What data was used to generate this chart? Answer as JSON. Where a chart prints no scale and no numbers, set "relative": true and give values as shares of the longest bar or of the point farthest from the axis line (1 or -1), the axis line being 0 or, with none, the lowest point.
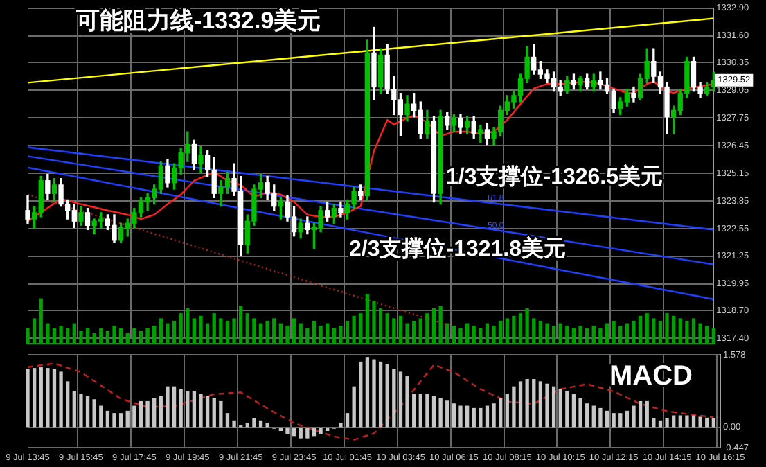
{
  "chart_data": [
    {
      "type": "candlestick",
      "grid": true,
      "colors": [
        "#ffffff",
        "#00c000",
        "#00c000",
        "#ffffff",
        "#00c000",
        "#ffffff",
        "#ffffff",
        "#ffffff",
        "#00c000",
        "#ffffff",
        "#00c000",
        "#00c000",
        "#ffffff",
        "#ffffff",
        "#00c000",
        "#00c000",
        "#00c000",
        "#00c000",
        "#00c000",
        "#00c000",
        "#00c000",
        "#ffffff",
        "#00c000",
        "#00c000",
        "#00c000",
        "#ffffff",
        "#00c000",
        "#ffffff",
        "#ffffff",
        "#00c000",
        "#00c000",
        "#ffffff",
        "#ffffff",
        "#00c000",
        "#00c000",
        "#00c000",
        "#ffffff",
        "#ffffff",
        "#00c000",
        "#ffffff",
        "#ffffff",
        "#00c000",
        "#ffffff",
        "#00c000",
        "#00c000",
        "#ffffff",
        "#00c000",
        "#ffffff",
        "#00c000",
        "#00c000",
        "#ffffff",
        "#00c000",
        "#ffffff",
        "#00c000",
        "#ffffff",
        "#ffffff",
        "#ffffff",
        "#00c000",
        "#ffffff",
        "#ffffff",
        "#00c000",
        "#ffffff",
        "#00c000",
        "#ffffff",
        "#00c000",
        "#ffffff",
        "#00c000",
        "#ffffff",
        "#00c000",
        "#ffffff",
        "#00c000",
        "#00c000",
        "#00c000",
        "#00c000",
        "#00c000",
        "#00c000",
        "#ffffff",
        "#ffffff",
        "#ffffff",
        "#ffffff",
        "#ffffff",
        "#00c000",
        "#ffffff",
        "#00c000",
        "#ffffff",
        "#00c000",
        "#ffffff",
        "#ffffff",
        "#ffffff",
        "#00c000",
        "#00c000",
        "#ffffff",
        "#00c000",
        "#00c000",
        "#ffffff",
        "#ffffff",
        "#ffffff",
        "#00c000",
        "#00c000",
        "#00c000",
        "#ffffff",
        "#ffffff",
        "#00c000",
        "#00c000"
      ],
      "tick_labels": "y",
      "legend": false,
      "categories": [
        null,
        null,
        null,
        null,
        null,
        null,
        null,
        null,
        null,
        null,
        null,
        null,
        null,
        null,
        null,
        null,
        null,
        null,
        null,
        null,
        null,
        null,
        null,
        null,
        null,
        null,
        null,
        null,
        null,
        null,
        null,
        null,
        null,
        null,
        null,
        null,
        null,
        null,
        null,
        null,
        null,
        null,
        null,
        null,
        null,
        null,
        null,
        null,
        null,
        null,
        null,
        null,
        null,
        null,
        null,
        null,
        null,
        null,
        null,
        null,
        null,
        null,
        null,
        null,
        null,
        null,
        null,
        null,
        null,
        null,
        null,
        null,
        null,
        null,
        null,
        null,
        null,
        null,
        null,
        null,
        null,
        null,
        null,
        null,
        null,
        null,
        null,
        null,
        null,
        null,
        null,
        null,
        null,
        null,
        null,
        null,
        null,
        null,
        null,
        null,
        null,
        null,
        null,
        null
      ],
      "ylim": [
        1317.4,
        1332.9
      ],
      "yticks": [
        {
          "value": 1332.9,
          "label": "1332.90"
        },
        {
          "value": 1331.6,
          "label": "1331.60"
        },
        {
          "value": 1330.35,
          "label": "1330.35"
        },
        {
          "value": 1329.05,
          "label": "1329.05"
        },
        {
          "value": 1327.75,
          "label": "1327.75"
        },
        {
          "value": 1326.45,
          "label": "1326.45"
        },
        {
          "value": 1325.15,
          "label": "1325.15"
        },
        {
          "value": 1323.85,
          "label": "1323.85"
        },
        {
          "value": 1322.55,
          "label": "1322.55"
        },
        {
          "value": 1321.25,
          "label": "1321.25"
        },
        {
          "value": 1319.95,
          "label": "1319.95"
        },
        {
          "value": 1318.7,
          "label": "1318.70"
        },
        {
          "value": 1317.4,
          "label": "1317.40"
        }
      ],
      "ohlc": [
        [
          1323.4,
          1324.1,
          1322.8,
          1323.0
        ],
        [
          1323.0,
          1323.6,
          1322.6,
          1323.3
        ],
        [
          1323.3,
          1325.0,
          1323.1,
          1324.8
        ],
        [
          1324.8,
          1325.1,
          1323.9,
          1324.2
        ],
        [
          1324.2,
          1324.9,
          1323.8,
          1324.6
        ],
        [
          1324.6,
          1324.9,
          1323.6,
          1323.7
        ],
        [
          1323.7,
          1323.9,
          1323.0,
          1323.4
        ],
        [
          1323.4,
          1323.7,
          1322.6,
          1322.9
        ],
        [
          1322.9,
          1323.6,
          1322.7,
          1323.3
        ],
        [
          1323.3,
          1323.5,
          1322.5,
          1322.7
        ],
        [
          1322.7,
          1323.0,
          1322.3,
          1322.9
        ],
        [
          1322.9,
          1323.3,
          1322.6,
          1323.0
        ],
        [
          1323.0,
          1323.2,
          1322.5,
          1322.7
        ],
        [
          1322.7,
          1323.2,
          1321.9,
          1322.0
        ],
        [
          1322.0,
          1322.8,
          1321.9,
          1322.6
        ],
        [
          1322.6,
          1323.0,
          1322.2,
          1322.8
        ],
        [
          1322.8,
          1323.5,
          1322.6,
          1323.3
        ],
        [
          1323.3,
          1324.0,
          1323.1,
          1323.8
        ],
        [
          1323.8,
          1324.2,
          1323.4,
          1324.0
        ],
        [
          1324.0,
          1324.6,
          1323.7,
          1324.4
        ],
        [
          1324.4,
          1325.7,
          1324.2,
          1325.5
        ],
        [
          1325.5,
          1325.8,
          1324.5,
          1324.7
        ],
        [
          1324.7,
          1325.6,
          1324.4,
          1325.4
        ],
        [
          1325.4,
          1326.3,
          1325.1,
          1326.1
        ],
        [
          1326.1,
          1327.1,
          1325.7,
          1326.5
        ],
        [
          1326.5,
          1326.7,
          1325.3,
          1325.6
        ],
        [
          1325.6,
          1326.4,
          1325.2,
          1326.0
        ],
        [
          1326.0,
          1326.2,
          1325.0,
          1325.3
        ],
        [
          1325.3,
          1325.9,
          1324.0,
          1324.2
        ],
        [
          1324.2,
          1324.8,
          1323.6,
          1324.5
        ],
        [
          1324.5,
          1325.2,
          1324.2,
          1324.9
        ],
        [
          1324.9,
          1325.6,
          1324.1,
          1324.3
        ],
        [
          1324.3,
          1325.0,
          1321.3,
          1321.8
        ],
        [
          1321.8,
          1323.2,
          1321.4,
          1322.9
        ],
        [
          1322.9,
          1324.6,
          1322.7,
          1324.4
        ],
        [
          1324.4,
          1325.1,
          1324.0,
          1324.7
        ],
        [
          1324.7,
          1325.0,
          1323.9,
          1324.2
        ],
        [
          1324.2,
          1324.6,
          1323.4,
          1323.6
        ],
        [
          1323.6,
          1324.0,
          1323.0,
          1323.8
        ],
        [
          1323.8,
          1324.1,
          1322.9,
          1323.1
        ],
        [
          1323.1,
          1323.6,
          1322.2,
          1322.4
        ],
        [
          1322.4,
          1323.0,
          1322.1,
          1322.8
        ],
        [
          1322.8,
          1323.1,
          1322.3,
          1322.5
        ],
        [
          1322.5,
          1322.8,
          1321.6,
          1322.6
        ],
        [
          1322.6,
          1323.6,
          1322.4,
          1323.4
        ],
        [
          1323.4,
          1323.8,
          1322.9,
          1323.1
        ],
        [
          1323.1,
          1323.7,
          1322.8,
          1323.5
        ],
        [
          1323.5,
          1323.8,
          1323.1,
          1323.3
        ],
        [
          1323.3,
          1323.9,
          1323.0,
          1323.7
        ],
        [
          1323.7,
          1324.5,
          1323.5,
          1324.3
        ],
        [
          1324.3,
          1324.6,
          1323.9,
          1324.1
        ],
        [
          1324.1,
          1331.4,
          1323.9,
          1330.8
        ],
        [
          1330.8,
          1332.0,
          1328.6,
          1329.2
        ],
        [
          1329.2,
          1331.0,
          1328.9,
          1330.7
        ],
        [
          1330.7,
          1331.2,
          1328.9,
          1329.1
        ],
        [
          1329.1,
          1329.7,
          1327.9,
          1328.6
        ],
        [
          1328.6,
          1328.9,
          1326.9,
          1327.9
        ],
        [
          1327.9,
          1328.8,
          1327.6,
          1328.4
        ],
        [
          1328.4,
          1328.9,
          1327.8,
          1328.1
        ],
        [
          1328.1,
          1328.5,
          1326.8,
          1327.0
        ],
        [
          1327.0,
          1328.1,
          1326.8,
          1327.6
        ],
        [
          1327.6,
          1327.8,
          1323.8,
          1324.2
        ],
        [
          1324.2,
          1328.1,
          1323.7,
          1327.8
        ],
        [
          1327.8,
          1328.0,
          1327.2,
          1327.4
        ],
        [
          1327.4,
          1327.9,
          1327.1,
          1327.7
        ],
        [
          1327.7,
          1327.9,
          1327.0,
          1327.3
        ],
        [
          1327.3,
          1327.8,
          1327.0,
          1327.6
        ],
        [
          1327.6,
          1327.8,
          1326.8,
          1327.0
        ],
        [
          1327.0,
          1327.4,
          1326.6,
          1327.2
        ],
        [
          1327.2,
          1327.5,
          1326.5,
          1326.8
        ],
        [
          1326.8,
          1327.3,
          1326.5,
          1327.1
        ],
        [
          1327.1,
          1328.3,
          1326.9,
          1328.1
        ],
        [
          1328.1,
          1328.8,
          1327.9,
          1328.5
        ],
        [
          1328.5,
          1329.0,
          1328.2,
          1328.8
        ],
        [
          1328.8,
          1329.8,
          1328.5,
          1329.6
        ],
        [
          1329.6,
          1331.1,
          1329.4,
          1330.6
        ],
        [
          1330.6,
          1331.2,
          1329.8,
          1330.0
        ],
        [
          1330.0,
          1330.4,
          1329.6,
          1329.8
        ],
        [
          1329.8,
          1330.0,
          1329.4,
          1329.6
        ],
        [
          1329.6,
          1329.9,
          1329.0,
          1329.2
        ],
        [
          1329.2,
          1329.5,
          1328.8,
          1329.0
        ],
        [
          1329.0,
          1329.7,
          1328.9,
          1329.5
        ],
        [
          1329.5,
          1329.8,
          1329.1,
          1329.3
        ],
        [
          1329.3,
          1329.7,
          1329.0,
          1329.6
        ],
        [
          1329.6,
          1329.8,
          1329.1,
          1329.2
        ],
        [
          1329.2,
          1329.8,
          1329.0,
          1329.5
        ],
        [
          1329.5,
          1329.9,
          1329.1,
          1329.3
        ],
        [
          1329.3,
          1329.6,
          1328.9,
          1329.0
        ],
        [
          1329.0,
          1329.1,
          1328.0,
          1328.2
        ],
        [
          1328.2,
          1328.7,
          1327.9,
          1328.5
        ],
        [
          1328.5,
          1329.1,
          1328.3,
          1328.9
        ],
        [
          1328.9,
          1329.2,
          1328.5,
          1328.7
        ],
        [
          1328.7,
          1329.8,
          1328.6,
          1329.6
        ],
        [
          1329.6,
          1331.0,
          1329.4,
          1330.4
        ],
        [
          1330.4,
          1331.0,
          1329.4,
          1329.7
        ],
        [
          1329.7,
          1329.9,
          1328.9,
          1329.2
        ],
        [
          1329.2,
          1329.4,
          1327.0,
          1327.8
        ],
        [
          1327.8,
          1328.3,
          1327.0,
          1328.1
        ],
        [
          1328.1,
          1329.1,
          1327.9,
          1328.9
        ],
        [
          1328.9,
          1330.6,
          1328.7,
          1330.4
        ],
        [
          1330.4,
          1330.6,
          1329.0,
          1329.2
        ],
        [
          1329.2,
          1329.4,
          1328.7,
          1328.9
        ],
        [
          1328.9,
          1329.4,
          1328.8,
          1329.2
        ],
        [
          1329.2,
          1329.9,
          1329.0,
          1329.52
        ]
      ],
      "series": [
        {
          "type": "line",
          "color": "#ff2020",
          "values": [
            1322.9,
            null,
            null,
            null,
            null,
            1323.94,
            null,
            null,
            1323.7,
            null,
            null,
            null,
            1323.4,
            null,
            null,
            1323.2,
            null,
            1323.0,
            null,
            1323.2,
            null,
            1323.7,
            null,
            1324.15,
            null,
            1324.8,
            null,
            null,
            1325.2,
            null,
            1324.8,
            null,
            1324.6,
            null,
            1324.04,
            null,
            1324.26,
            null,
            1324.15,
            null,
            1323.8,
            null,
            1323.2,
            null,
            1323.1,
            null,
            1323.1,
            null,
            1323.3,
            null,
            1323.6,
            null,
            1326.2,
            null,
            1327.65,
            1327.44,
            null,
            1327.75,
            1327.86,
            null,
            1327.54,
            null,
            1326.9,
            null,
            1327.1,
            null,
            1327.1,
            null,
            1327.0,
            null,
            1327.1,
            null,
            1327.65,
            null,
            1328.4,
            null,
            1329.13,
            null,
            1329.34,
            null,
            1329.34,
            null,
            null,
            null,
            1329.45,
            null,
            1329.34,
            null,
            1329.13,
            null,
            1328.92,
            1328.92,
            null,
            1329.34,
            1329.45,
            null,
            1329.0,
            1328.92,
            null,
            1329.13,
            null,
            1329.23,
            null,
            1329.34
          ]
        },
        {
          "type": "line",
          "color": "#ffff00",
          "values": [
            1329.4,
            null,
            null,
            null,
            null,
            null,
            null,
            null,
            null,
            null,
            null,
            null,
            null,
            null,
            null,
            null,
            null,
            null,
            null,
            null,
            null,
            null,
            null,
            null,
            null,
            null,
            null,
            null,
            null,
            null,
            null,
            null,
            null,
            null,
            null,
            null,
            null,
            null,
            null,
            null,
            null,
            null,
            null,
            null,
            null,
            null,
            null,
            null,
            null,
            null,
            null,
            null,
            null,
            null,
            null,
            null,
            null,
            null,
            null,
            null,
            null,
            null,
            null,
            null,
            null,
            null,
            null,
            null,
            null,
            null,
            null,
            null,
            null,
            null,
            null,
            null,
            null,
            null,
            null,
            null,
            null,
            null,
            null,
            null,
            null,
            null,
            null,
            null,
            null,
            null,
            null,
            null,
            null,
            null,
            null,
            null,
            null,
            null,
            null,
            null,
            null,
            null,
            null,
            1332.42
          ]
        },
        {
          "type": "line",
          "color": "#2040ff",
          "values": [
            1326.37,
            null,
            null,
            null,
            null,
            null,
            null,
            null,
            null,
            null,
            null,
            null,
            null,
            null,
            null,
            null,
            null,
            null,
            null,
            null,
            null,
            null,
            null,
            null,
            null,
            null,
            null,
            null,
            null,
            null,
            null,
            null,
            null,
            null,
            null,
            null,
            null,
            null,
            null,
            null,
            null,
            null,
            null,
            null,
            null,
            null,
            null,
            null,
            null,
            null,
            null,
            null,
            null,
            null,
            null,
            null,
            null,
            null,
            null,
            null,
            null,
            null,
            null,
            null,
            null,
            null,
            null,
            null,
            null,
            null,
            null,
            null,
            null,
            null,
            null,
            null,
            null,
            null,
            null,
            null,
            null,
            null,
            null,
            null,
            null,
            null,
            null,
            null,
            null,
            null,
            null,
            null,
            null,
            null,
            null,
            null,
            null,
            null,
            null,
            null,
            null,
            null,
            null,
            1322.5
          ]
        },
        {
          "type": "line",
          "color": "#2040ff",
          "values": [
            1325.95,
            null,
            null,
            null,
            null,
            null,
            null,
            null,
            null,
            null,
            null,
            null,
            null,
            null,
            null,
            null,
            null,
            null,
            null,
            null,
            null,
            null,
            null,
            null,
            null,
            null,
            null,
            null,
            null,
            null,
            null,
            null,
            null,
            null,
            null,
            null,
            null,
            null,
            null,
            null,
            null,
            null,
            null,
            null,
            null,
            null,
            null,
            null,
            null,
            null,
            null,
            null,
            null,
            null,
            null,
            null,
            null,
            null,
            null,
            null,
            null,
            null,
            null,
            null,
            null,
            null,
            null,
            null,
            null,
            null,
            null,
            null,
            null,
            null,
            null,
            null,
            null,
            null,
            null,
            null,
            null,
            null,
            null,
            null,
            null,
            null,
            null,
            null,
            null,
            null,
            null,
            null,
            null,
            null,
            null,
            null,
            null,
            null,
            null,
            null,
            null,
            null,
            null,
            1320.87
          ]
        },
        {
          "type": "line",
          "color": "#2040ff",
          "values": [
            1325.42,
            null,
            null,
            null,
            null,
            null,
            null,
            null,
            null,
            null,
            null,
            null,
            null,
            null,
            null,
            null,
            null,
            null,
            null,
            null,
            null,
            null,
            null,
            null,
            null,
            null,
            null,
            null,
            null,
            null,
            null,
            null,
            null,
            null,
            null,
            null,
            null,
            null,
            null,
            null,
            null,
            null,
            null,
            null,
            null,
            null,
            null,
            null,
            null,
            null,
            null,
            null,
            null,
            null,
            null,
            null,
            null,
            null,
            null,
            null,
            null,
            null,
            null,
            null,
            null,
            null,
            null,
            null,
            null,
            null,
            null,
            null,
            null,
            null,
            null,
            null,
            null,
            null,
            null,
            null,
            null,
            null,
            null,
            null,
            null,
            null,
            null,
            null,
            null,
            null,
            null,
            null,
            null,
            null,
            null,
            null,
            null,
            null,
            null,
            null,
            null,
            null,
            null,
            1319.23
          ]
        },
        {
          "type": "line",
          "color": "#b02020",
          "line_style": "dotted",
          "values": [
            1324.15,
            null,
            null,
            null,
            null,
            null,
            null,
            null,
            null,
            null,
            null,
            null,
            null,
            null,
            null,
            null,
            null,
            null,
            null,
            null,
            null,
            null,
            null,
            null,
            null,
            null,
            null,
            null,
            null,
            null,
            null,
            null,
            null,
            null,
            null,
            null,
            null,
            null,
            null,
            null,
            null,
            null,
            null,
            null,
            null,
            null,
            null,
            null,
            null,
            null,
            null,
            null,
            null,
            null,
            null,
            null,
            null,
            null,
            null,
            null,
            null,
            null,
            null,
            null,
            1317.94,
            null,
            null,
            null,
            null,
            null,
            null,
            null,
            null,
            null,
            null,
            null,
            null,
            null,
            null,
            null,
            null,
            null,
            null,
            null,
            null,
            null,
            null,
            null,
            null,
            null,
            null,
            null,
            null,
            null,
            null,
            null,
            null,
            null,
            null,
            null,
            null,
            null,
            null,
            null
          ]
        }
      ],
      "annotations": [
        "可能阻力线-1332.9美元",
        "1/3支撑位-1326.5美元",
        "2/3支撑位-1321.8美元",
        "61.8",
        "50.0",
        "1329.52"
      ]
    },
    {
      "type": "bar",
      "relative": true,
      "tick_labels": false,
      "legend": false,
      "color": "#00a000",
      "categories": [
        null,
        null,
        null,
        null,
        null,
        null,
        null,
        null,
        null,
        null,
        null,
        null,
        null,
        null,
        null,
        null,
        null,
        null,
        null,
        null,
        null,
        null,
        null,
        null,
        null,
        null,
        null,
        null,
        null,
        null,
        null,
        null,
        null,
        null,
        null,
        null,
        null,
        null,
        null,
        null,
        null,
        null,
        null,
        null,
        null,
        null,
        null,
        null,
        null,
        null,
        null,
        null,
        null,
        null,
        null,
        null,
        null,
        null,
        null,
        null,
        null,
        null,
        null,
        null,
        null,
        null,
        null,
        null,
        null,
        null,
        null,
        null,
        null,
        null,
        null,
        null,
        null,
        null,
        null,
        null,
        null,
        null,
        null,
        null,
        null,
        null,
        null,
        null,
        null,
        null,
        null,
        null,
        null,
        null,
        null,
        null,
        null,
        null,
        null,
        null,
        null,
        null,
        null,
        null
      ],
      "values": [
        0.3,
        0.5,
        0.9,
        0.4,
        0.3,
        0.35,
        0.3,
        0.4,
        0.25,
        0.3,
        0.2,
        0.3,
        0.25,
        0.35,
        0.3,
        0.2,
        0.3,
        0.25,
        0.3,
        0.35,
        0.5,
        0.4,
        0.45,
        0.6,
        0.7,
        0.5,
        0.55,
        0.4,
        0.6,
        0.5,
        0.45,
        0.5,
        0.75,
        0.6,
        0.5,
        0.4,
        0.45,
        0.5,
        0.4,
        0.35,
        0.5,
        0.4,
        0.3,
        0.45,
        0.35,
        0.4,
        0.3,
        0.35,
        0.45,
        0.55,
        0.6,
        1,
        0.85,
        0.7,
        0.6,
        0.5,
        0.55,
        0.4,
        0.45,
        0.5,
        0.6,
        0.7,
        0.75,
        0.4,
        0.35,
        0.3,
        0.4,
        0.35,
        0.3,
        0.4,
        0.35,
        0.45,
        0.5,
        0.55,
        0.6,
        0.7,
        0.5,
        0.45,
        0.4,
        0.35,
        0.4,
        0.35,
        0.3,
        0.35,
        0.3,
        0.35,
        0.3,
        0.4,
        0.45,
        0.35,
        0.4,
        0.45,
        0.55,
        0.6,
        0.5,
        0.45,
        0.6,
        0.55,
        0.5,
        0.45,
        0.5,
        0.4,
        0.35,
        0.3
      ]
    },
    {
      "type": "bar",
      "grid": true,
      "legend": false,
      "categories": [
        "9 Jul 13:45",
        null,
        null,
        null,
        null,
        null,
        null,
        null,
        "9 Jul 15:45",
        null,
        null,
        null,
        null,
        null,
        null,
        null,
        "9 Jul 17:45",
        null,
        null,
        null,
        null,
        null,
        null,
        null,
        "9 Jul 19:45",
        null,
        null,
        null,
        null,
        null,
        null,
        null,
        "9 Jul 21:45",
        null,
        null,
        null,
        null,
        null,
        null,
        null,
        "9 Jul 23:45",
        null,
        null,
        null,
        null,
        null,
        null,
        null,
        "10 Jul 01:45",
        null,
        null,
        null,
        null,
        null,
        null,
        null,
        "10 Jul 03:45",
        null,
        null,
        null,
        null,
        null,
        null,
        null,
        "10 Jul 06:15",
        null,
        null,
        null,
        null,
        null,
        null,
        null,
        "10 Jul 08:15",
        null,
        null,
        null,
        null,
        null,
        null,
        null,
        "10 Jul 10:15",
        null,
        null,
        null,
        null,
        null,
        null,
        null,
        "10 Jul 12:15",
        null,
        null,
        null,
        null,
        null,
        null,
        null,
        "10 Jul 14:15",
        null,
        null,
        null,
        null,
        null,
        null,
        null,
        "10 Jul 16:15"
      ],
      "ylim": [
        -0.447,
        1.578
      ],
      "yticks": [
        {
          "value": 1.578,
          "label": "1.578"
        },
        {
          "value": 0,
          "label": "0.00"
        },
        {
          "value": -0.447,
          "label": "-0.447"
        }
      ],
      "series": [
        {
          "type": "bar",
          "color": "#c8c8c8",
          "values": [
            1.26,
            1.28,
            1.3,
            1.28,
            1.26,
            1.2,
            0.99,
            0.78,
            0.72,
            0.67,
            0.6,
            0.46,
            0.35,
            0.3,
            0.3,
            0.35,
            0.46,
            0.56,
            0.56,
            0.62,
            0.67,
            0.88,
            0.88,
            0.83,
            0.78,
            0.78,
            0.72,
            0.67,
            0.62,
            0.56,
            0.3,
            0.14,
            0.03,
            0.09,
            0.19,
            0.14,
            0.09,
            -0.02,
            -0.07,
            -0.13,
            -0.18,
            -0.23,
            -0.23,
            -0.18,
            -0.13,
            -0.07,
            -0.02,
            0.09,
            0.3,
            0.88,
            1.42,
            1.52,
            1.47,
            1.42,
            1.36,
            1.26,
            1.2,
            1.1,
            0.72,
            0.72,
            0.72,
            0.67,
            0.62,
            0.57,
            0.51,
            0.46,
            0.46,
            0.41,
            0.41,
            0.46,
            0.51,
            0.62,
            0.72,
            0.88,
            0.99,
            1.04,
            1.04,
            0.99,
            0.94,
            0.88,
            0.83,
            0.78,
            0.72,
            0.62,
            0.51,
            0.46,
            0.41,
            0.35,
            0.3,
            0.3,
            0.35,
            0.46,
            0.56,
            0.56,
            0.19,
            0.14,
            0.19,
            0.25,
            0.25,
            0.25,
            0.25,
            0.22,
            0.2,
            0.19,
            null
          ]
        },
        {
          "type": "line",
          "color": "#c02020",
          "line_style": "dashed",
          "values": [
            1.31,
            null,
            null,
            null,
            1.39,
            null,
            null,
            null,
            1.2,
            null,
            null,
            null,
            null,
            null,
            0.62,
            null,
            null,
            null,
            0.44,
            null,
            null,
            null,
            0.46,
            null,
            null,
            null,
            null,
            null,
            0.72,
            null,
            null,
            null,
            0.76,
            null,
            null,
            null,
            0.41,
            null,
            null,
            null,
            0.09,
            null,
            null,
            null,
            null,
            null,
            -0.2,
            null,
            null,
            -0.27,
            null,
            null,
            -0.13,
            null,
            null,
            null,
            0.46,
            null,
            null,
            null,
            null,
            1.36,
            null,
            null,
            1.2,
            null,
            null,
            null,
            0.83,
            null,
            null,
            null,
            0.56,
            null,
            null,
            null,
            0.51,
            null,
            null,
            null,
            0.83,
            null,
            null,
            null,
            0.94,
            null,
            null,
            null,
            0.78,
            null,
            null,
            null,
            0.51,
            null,
            null,
            null,
            0.35,
            null,
            null,
            null,
            0.27,
            null,
            null,
            0.22,
            null
          ]
        }
      ],
      "annotations": [
        "MACD"
      ]
    }
  ]
}
